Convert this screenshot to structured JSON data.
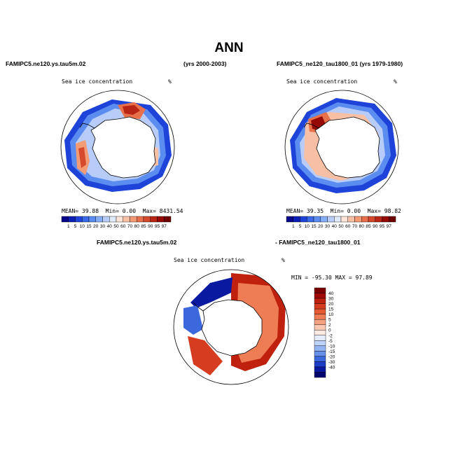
{
  "page": {
    "main_title": "ANN",
    "left_case": "FAMIPC5.ne120.ys.tau5m.02",
    "left_years": "(yrs 2000-2003)",
    "right_header": "FAMIPC5_ne120_tau1800_01 (yrs 1979-1980)",
    "diff_left": "FAMIPC5.ne120.ys.tau5m.02",
    "diff_right": "- FAMIPC5_ne120_tau1800_01"
  },
  "panels": {
    "left": {
      "variable": "Sea ice concentration",
      "units": "%",
      "stats": {
        "mean_label": "MEAN=",
        "mean": "39.88",
        "min_label": "Min=",
        "min": "0.00",
        "max_label": "Max=",
        "max": "8431.54"
      }
    },
    "right": {
      "variable": "Sea ice concentration",
      "units": "%",
      "stats": {
        "mean_label": "MEAN=",
        "mean": "39.35",
        "min_label": "Min=",
        "min": "0.00",
        "max_label": "Max=",
        "max": "98.82"
      }
    },
    "diff": {
      "variable": "Sea ice concentration",
      "units": "%",
      "stats_text": "MIN = -95.30 MAX =  97.89"
    }
  },
  "colorbars": {
    "horizontal_levels": [
      "1",
      "5",
      "10",
      "15",
      "20",
      "30",
      "40",
      "50",
      "60",
      "70",
      "80",
      "85",
      "90",
      "95",
      "97"
    ],
    "horizontal_colors": [
      "#08068a",
      "#0a1fb5",
      "#1d43d8",
      "#3a6ae8",
      "#5b8cf0",
      "#86aef5",
      "#b7ccf8",
      "#dfe9fb",
      "#fbe3d6",
      "#f7c0a4",
      "#f29b74",
      "#e8704a",
      "#d54a2c",
      "#b82514",
      "#960a05",
      "#6e0000"
    ],
    "vertical_levels": [
      "40",
      "30",
      "20",
      "15",
      "10",
      "5",
      "2",
      "0",
      "-2",
      "-5",
      "-10",
      "-15",
      "-20",
      "-30",
      "-40"
    ],
    "vertical_colors": [
      "#7a0000",
      "#a00a06",
      "#c0200e",
      "#d63d20",
      "#e45b35",
      "#ee7d55",
      "#f4a282",
      "#f9c7b2",
      "#fdeae2",
      "#e4edfb",
      "#bfd2f7",
      "#93b3f2",
      "#6690ea",
      "#3c68de",
      "#1c3ec8",
      "#0a1aa0",
      "#040670"
    ]
  }
}
